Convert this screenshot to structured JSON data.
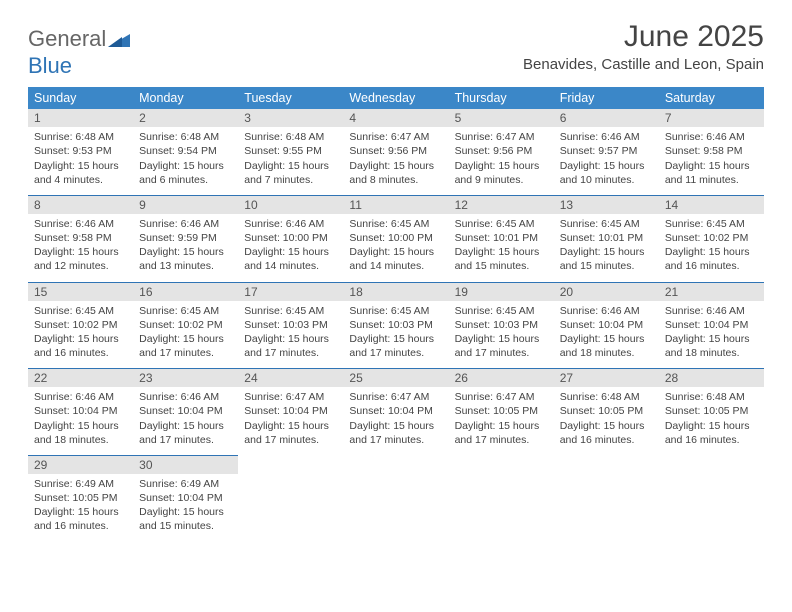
{
  "brand": {
    "line1": "General",
    "line2": "Blue"
  },
  "title": "June 2025",
  "subtitle": "Benavides, Castille and Leon, Spain",
  "colors": {
    "header_bg": "#3b87c8",
    "header_fg": "#ffffff",
    "numrow_bg": "#e4e4e4",
    "rule": "#2f74b5",
    "text": "#444444"
  },
  "daynames": [
    "Sunday",
    "Monday",
    "Tuesday",
    "Wednesday",
    "Thursday",
    "Friday",
    "Saturday"
  ],
  "weeks": [
    [
      {
        "n": "1",
        "sr": "Sunrise: 6:48 AM",
        "ss": "Sunset: 9:53 PM",
        "d1": "Daylight: 15 hours",
        "d2": "and 4 minutes."
      },
      {
        "n": "2",
        "sr": "Sunrise: 6:48 AM",
        "ss": "Sunset: 9:54 PM",
        "d1": "Daylight: 15 hours",
        "d2": "and 6 minutes."
      },
      {
        "n": "3",
        "sr": "Sunrise: 6:48 AM",
        "ss": "Sunset: 9:55 PM",
        "d1": "Daylight: 15 hours",
        "d2": "and 7 minutes."
      },
      {
        "n": "4",
        "sr": "Sunrise: 6:47 AM",
        "ss": "Sunset: 9:56 PM",
        "d1": "Daylight: 15 hours",
        "d2": "and 8 minutes."
      },
      {
        "n": "5",
        "sr": "Sunrise: 6:47 AM",
        "ss": "Sunset: 9:56 PM",
        "d1": "Daylight: 15 hours",
        "d2": "and 9 minutes."
      },
      {
        "n": "6",
        "sr": "Sunrise: 6:46 AM",
        "ss": "Sunset: 9:57 PM",
        "d1": "Daylight: 15 hours",
        "d2": "and 10 minutes."
      },
      {
        "n": "7",
        "sr": "Sunrise: 6:46 AM",
        "ss": "Sunset: 9:58 PM",
        "d1": "Daylight: 15 hours",
        "d2": "and 11 minutes."
      }
    ],
    [
      {
        "n": "8",
        "sr": "Sunrise: 6:46 AM",
        "ss": "Sunset: 9:58 PM",
        "d1": "Daylight: 15 hours",
        "d2": "and 12 minutes."
      },
      {
        "n": "9",
        "sr": "Sunrise: 6:46 AM",
        "ss": "Sunset: 9:59 PM",
        "d1": "Daylight: 15 hours",
        "d2": "and 13 minutes."
      },
      {
        "n": "10",
        "sr": "Sunrise: 6:46 AM",
        "ss": "Sunset: 10:00 PM",
        "d1": "Daylight: 15 hours",
        "d2": "and 14 minutes."
      },
      {
        "n": "11",
        "sr": "Sunrise: 6:45 AM",
        "ss": "Sunset: 10:00 PM",
        "d1": "Daylight: 15 hours",
        "d2": "and 14 minutes."
      },
      {
        "n": "12",
        "sr": "Sunrise: 6:45 AM",
        "ss": "Sunset: 10:01 PM",
        "d1": "Daylight: 15 hours",
        "d2": "and 15 minutes."
      },
      {
        "n": "13",
        "sr": "Sunrise: 6:45 AM",
        "ss": "Sunset: 10:01 PM",
        "d1": "Daylight: 15 hours",
        "d2": "and 15 minutes."
      },
      {
        "n": "14",
        "sr": "Sunrise: 6:45 AM",
        "ss": "Sunset: 10:02 PM",
        "d1": "Daylight: 15 hours",
        "d2": "and 16 minutes."
      }
    ],
    [
      {
        "n": "15",
        "sr": "Sunrise: 6:45 AM",
        "ss": "Sunset: 10:02 PM",
        "d1": "Daylight: 15 hours",
        "d2": "and 16 minutes."
      },
      {
        "n": "16",
        "sr": "Sunrise: 6:45 AM",
        "ss": "Sunset: 10:02 PM",
        "d1": "Daylight: 15 hours",
        "d2": "and 17 minutes."
      },
      {
        "n": "17",
        "sr": "Sunrise: 6:45 AM",
        "ss": "Sunset: 10:03 PM",
        "d1": "Daylight: 15 hours",
        "d2": "and 17 minutes."
      },
      {
        "n": "18",
        "sr": "Sunrise: 6:45 AM",
        "ss": "Sunset: 10:03 PM",
        "d1": "Daylight: 15 hours",
        "d2": "and 17 minutes."
      },
      {
        "n": "19",
        "sr": "Sunrise: 6:45 AM",
        "ss": "Sunset: 10:03 PM",
        "d1": "Daylight: 15 hours",
        "d2": "and 17 minutes."
      },
      {
        "n": "20",
        "sr": "Sunrise: 6:46 AM",
        "ss": "Sunset: 10:04 PM",
        "d1": "Daylight: 15 hours",
        "d2": "and 18 minutes."
      },
      {
        "n": "21",
        "sr": "Sunrise: 6:46 AM",
        "ss": "Sunset: 10:04 PM",
        "d1": "Daylight: 15 hours",
        "d2": "and 18 minutes."
      }
    ],
    [
      {
        "n": "22",
        "sr": "Sunrise: 6:46 AM",
        "ss": "Sunset: 10:04 PM",
        "d1": "Daylight: 15 hours",
        "d2": "and 18 minutes."
      },
      {
        "n": "23",
        "sr": "Sunrise: 6:46 AM",
        "ss": "Sunset: 10:04 PM",
        "d1": "Daylight: 15 hours",
        "d2": "and 17 minutes."
      },
      {
        "n": "24",
        "sr": "Sunrise: 6:47 AM",
        "ss": "Sunset: 10:04 PM",
        "d1": "Daylight: 15 hours",
        "d2": "and 17 minutes."
      },
      {
        "n": "25",
        "sr": "Sunrise: 6:47 AM",
        "ss": "Sunset: 10:04 PM",
        "d1": "Daylight: 15 hours",
        "d2": "and 17 minutes."
      },
      {
        "n": "26",
        "sr": "Sunrise: 6:47 AM",
        "ss": "Sunset: 10:05 PM",
        "d1": "Daylight: 15 hours",
        "d2": "and 17 minutes."
      },
      {
        "n": "27",
        "sr": "Sunrise: 6:48 AM",
        "ss": "Sunset: 10:05 PM",
        "d1": "Daylight: 15 hours",
        "d2": "and 16 minutes."
      },
      {
        "n": "28",
        "sr": "Sunrise: 6:48 AM",
        "ss": "Sunset: 10:05 PM",
        "d1": "Daylight: 15 hours",
        "d2": "and 16 minutes."
      }
    ],
    [
      {
        "n": "29",
        "sr": "Sunrise: 6:49 AM",
        "ss": "Sunset: 10:05 PM",
        "d1": "Daylight: 15 hours",
        "d2": "and 16 minutes."
      },
      {
        "n": "30",
        "sr": "Sunrise: 6:49 AM",
        "ss": "Sunset: 10:04 PM",
        "d1": "Daylight: 15 hours",
        "d2": "and 15 minutes."
      },
      null,
      null,
      null,
      null,
      null
    ]
  ]
}
